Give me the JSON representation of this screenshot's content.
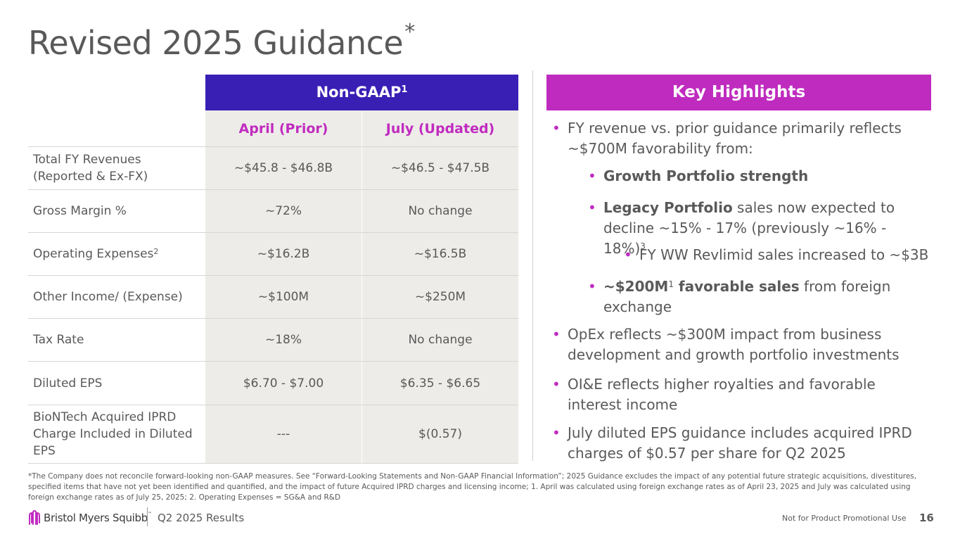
{
  "title": "Revised 2025 Guidance",
  "title_mark": "*",
  "table": {
    "header": "Non-GAAP",
    "header_sup": "1",
    "col1": "April (Prior)",
    "col2": "July (Updated)",
    "rows": [
      {
        "label": "Total FY Revenues (Reported & Ex-FX)",
        "sup": "",
        "april": "~$45.8 - $46.8B",
        "july": "~$46.5 - $47.5B"
      },
      {
        "label": "Gross Margin %",
        "sup": "",
        "april": "~72%",
        "july": "No change"
      },
      {
        "label": "Operating Expenses",
        "sup": "2",
        "april": "~$16.2B",
        "july": "~$16.5B"
      },
      {
        "label": "Other Income/ (Expense)",
        "sup": "",
        "april": "~$100M",
        "july": "~$250M"
      },
      {
        "label": "Tax Rate",
        "sup": "",
        "april": "~18%",
        "july": "No change"
      },
      {
        "label": "Diluted EPS",
        "sup": "",
        "april": "$6.70 - $7.00",
        "july": "$6.35 - $6.65"
      },
      {
        "label": "BioNTech Acquired IPRD Charge Included in Diluted EPS",
        "sup": "",
        "april": "---",
        "july": "$(0.57)"
      }
    ]
  },
  "highlights": {
    "header": "Key Highlights",
    "b1": "FY revenue vs. prior guidance primarily reflects ~$700M favorability from:",
    "b1a_bold": "Growth Portfolio strength",
    "b1b_bold": "Legacy Portfolio",
    "b1b_rest": " sales now expected to decline ~15% - 17% (previously ~16% - 18%)",
    "b1b_sup": "3",
    "b1b1": "FY WW Revlimid sales increased to ~$3B",
    "b1c_bold_a": "~$200M",
    "b1c_sup": "1",
    "b1c_bold_b": " favorable sales",
    "b1c_rest": " from foreign exchange",
    "b2": "OpEx reflects ~$300M impact from business development and growth portfolio investments",
    "b3": "OI&E reflects higher royalties and favorable interest income",
    "b4": "July diluted EPS guidance includes acquired IPRD charges of $0.57 per share for Q2 2025"
  },
  "footnote": "*The Company does not reconcile forward-looking non-GAAP measures. See “Forward-Looking Statements and Non-GAAP Financial Information”; 2025 Guidance excludes the impact of any potential future strategic acquisitions, divestitures, specified items that have not yet been identified and quantified, and the impact of future Acquired IPRD charges and licensing income; 1. April was calculated using foreign exchange rates as of April 23, 2025 and July was calculated using foreign exchange rates as of July 25, 2025; 2. Operating Expenses = SG&A and R&D",
  "footer": {
    "brand": "Bristol Myers Squibb",
    "brand_tm": "™",
    "subtitle": "Q2 2025 Results",
    "disclaimer": "Not for Product Promotional Use",
    "page": "16"
  },
  "colors": {
    "header_purple": "#3a1fb5",
    "magenta": "#bf2bbf",
    "cell_bg": "#eeece9",
    "text": "#595959"
  }
}
